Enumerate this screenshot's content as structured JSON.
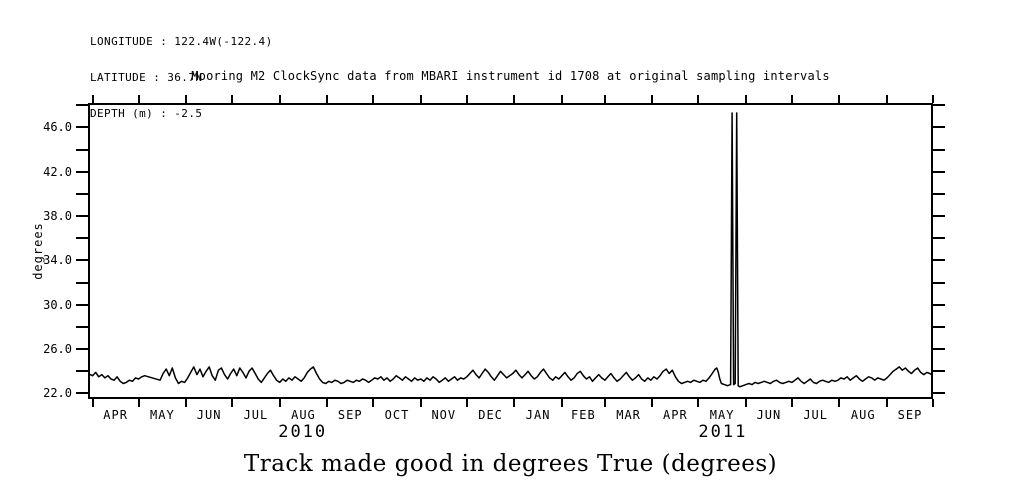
{
  "header": {
    "longitude": "LONGITUDE : 122.4W(-122.4)",
    "latitude": "LATITUDE : 36.7N",
    "depth": "DEPTH (m) : -2.5"
  },
  "title": "Mooring M2 ClockSync data from MBARI instrument id 1708 at original sampling intervals",
  "caption": "Track made good in degrees True (degrees)",
  "colors": {
    "line": "#000000",
    "background": "#ffffff",
    "text": "#000000"
  },
  "chart_data": {
    "type": "line",
    "title": "Mooring M2 ClockSync data from MBARI instrument id 1708 at original sampling intervals",
    "xlabel": "",
    "ylabel": "degrees",
    "ylim": [
      21.5,
      48.2
    ],
    "xlim_days": [
      -3,
      548
    ],
    "grid": false,
    "legend": "none",
    "y_ticks": [
      {
        "v": 22,
        "label": "22.0"
      },
      {
        "v": 24,
        "label": ""
      },
      {
        "v": 26,
        "label": "26.0"
      },
      {
        "v": 28,
        "label": ""
      },
      {
        "v": 30,
        "label": "30.0"
      },
      {
        "v": 32,
        "label": ""
      },
      {
        "v": 34,
        "label": "34.0"
      },
      {
        "v": 36,
        "label": ""
      },
      {
        "v": 38,
        "label": "38.0"
      },
      {
        "v": 40,
        "label": ""
      },
      {
        "v": 42,
        "label": "42.0"
      },
      {
        "v": 44,
        "label": ""
      },
      {
        "v": 46,
        "label": "46.0"
      },
      {
        "v": 48,
        "label": ""
      }
    ],
    "month_tick_days": [
      0,
      30,
      61,
      91,
      122,
      153,
      183,
      214,
      244,
      275,
      306,
      334,
      365,
      395,
      426,
      456,
      487,
      518,
      548
    ],
    "month_labels": [
      "APR",
      "MAY",
      "JUN",
      "JUL",
      "AUG",
      "SEP",
      "OCT",
      "NOV",
      "DEC",
      "JAN",
      "FEB",
      "MAR",
      "APR",
      "MAY",
      "JUN",
      "JUL",
      "AUG",
      "SEP"
    ],
    "year_labels": [
      {
        "label": "2010",
        "day": 137
      },
      {
        "label": "2011",
        "day": 411
      }
    ],
    "series": [
      {
        "name": "track_made_good_deg_true",
        "points": [
          [
            -3,
            23.8
          ],
          [
            0,
            23.6
          ],
          [
            2,
            23.9
          ],
          [
            4,
            23.5
          ],
          [
            6,
            23.7
          ],
          [
            8,
            23.4
          ],
          [
            10,
            23.6
          ],
          [
            12,
            23.3
          ],
          [
            14,
            23.2
          ],
          [
            16,
            23.5
          ],
          [
            18,
            23.1
          ],
          [
            20,
            22.9
          ],
          [
            22,
            23.0
          ],
          [
            24,
            23.2
          ],
          [
            26,
            23.1
          ],
          [
            28,
            23.4
          ],
          [
            30,
            23.3
          ],
          [
            32,
            23.5
          ],
          [
            34,
            23.6
          ],
          [
            44,
            23.2
          ],
          [
            46,
            23.8
          ],
          [
            48,
            24.2
          ],
          [
            50,
            23.6
          ],
          [
            52,
            24.3
          ],
          [
            54,
            23.4
          ],
          [
            56,
            22.9
          ],
          [
            58,
            23.1
          ],
          [
            60,
            23.0
          ],
          [
            62,
            23.4
          ],
          [
            64,
            23.9
          ],
          [
            66,
            24.4
          ],
          [
            68,
            23.7
          ],
          [
            70,
            24.2
          ],
          [
            72,
            23.5
          ],
          [
            74,
            24.0
          ],
          [
            76,
            24.4
          ],
          [
            78,
            23.6
          ],
          [
            80,
            23.2
          ],
          [
            82,
            24.1
          ],
          [
            84,
            24.3
          ],
          [
            86,
            23.7
          ],
          [
            88,
            23.3
          ],
          [
            90,
            23.8
          ],
          [
            92,
            24.2
          ],
          [
            94,
            23.6
          ],
          [
            96,
            24.3
          ],
          [
            98,
            23.9
          ],
          [
            100,
            23.4
          ],
          [
            102,
            24.0
          ],
          [
            104,
            24.3
          ],
          [
            106,
            23.8
          ],
          [
            108,
            23.3
          ],
          [
            110,
            23.0
          ],
          [
            112,
            23.4
          ],
          [
            114,
            23.8
          ],
          [
            116,
            24.1
          ],
          [
            118,
            23.6
          ],
          [
            120,
            23.2
          ],
          [
            122,
            23.0
          ],
          [
            124,
            23.3
          ],
          [
            126,
            23.1
          ],
          [
            128,
            23.4
          ],
          [
            130,
            23.2
          ],
          [
            132,
            23.5
          ],
          [
            134,
            23.3
          ],
          [
            136,
            23.1
          ],
          [
            138,
            23.4
          ],
          [
            140,
            23.9
          ],
          [
            142,
            24.2
          ],
          [
            144,
            24.4
          ],
          [
            146,
            23.8
          ],
          [
            148,
            23.3
          ],
          [
            150,
            23.0
          ],
          [
            152,
            22.9
          ],
          [
            154,
            23.1
          ],
          [
            156,
            23.0
          ],
          [
            158,
            23.2
          ],
          [
            160,
            23.1
          ],
          [
            162,
            22.9
          ],
          [
            164,
            23.0
          ],
          [
            166,
            23.2
          ],
          [
            168,
            23.1
          ],
          [
            170,
            23.0
          ],
          [
            172,
            23.2
          ],
          [
            174,
            23.1
          ],
          [
            176,
            23.3
          ],
          [
            178,
            23.2
          ],
          [
            180,
            23.0
          ],
          [
            182,
            23.2
          ],
          [
            184,
            23.4
          ],
          [
            186,
            23.3
          ],
          [
            188,
            23.5
          ],
          [
            190,
            23.2
          ],
          [
            192,
            23.4
          ],
          [
            194,
            23.1
          ],
          [
            196,
            23.3
          ],
          [
            198,
            23.6
          ],
          [
            200,
            23.4
          ],
          [
            202,
            23.2
          ],
          [
            204,
            23.5
          ],
          [
            206,
            23.3
          ],
          [
            208,
            23.1
          ],
          [
            210,
            23.4
          ],
          [
            212,
            23.2
          ],
          [
            214,
            23.3
          ],
          [
            216,
            23.1
          ],
          [
            218,
            23.4
          ],
          [
            220,
            23.2
          ],
          [
            222,
            23.5
          ],
          [
            224,
            23.3
          ],
          [
            226,
            23.0
          ],
          [
            228,
            23.2
          ],
          [
            230,
            23.4
          ],
          [
            232,
            23.1
          ],
          [
            234,
            23.3
          ],
          [
            236,
            23.5
          ],
          [
            238,
            23.2
          ],
          [
            240,
            23.4
          ],
          [
            242,
            23.3
          ],
          [
            244,
            23.5
          ],
          [
            246,
            23.8
          ],
          [
            248,
            24.1
          ],
          [
            250,
            23.7
          ],
          [
            252,
            23.4
          ],
          [
            254,
            23.8
          ],
          [
            256,
            24.2
          ],
          [
            258,
            23.9
          ],
          [
            260,
            23.5
          ],
          [
            262,
            23.2
          ],
          [
            264,
            23.6
          ],
          [
            266,
            24.0
          ],
          [
            268,
            23.7
          ],
          [
            270,
            23.4
          ],
          [
            272,
            23.6
          ],
          [
            274,
            23.8
          ],
          [
            276,
            24.1
          ],
          [
            278,
            23.7
          ],
          [
            280,
            23.4
          ],
          [
            282,
            23.7
          ],
          [
            284,
            24.0
          ],
          [
            286,
            23.6
          ],
          [
            288,
            23.3
          ],
          [
            290,
            23.5
          ],
          [
            292,
            23.9
          ],
          [
            294,
            24.2
          ],
          [
            296,
            23.8
          ],
          [
            298,
            23.4
          ],
          [
            300,
            23.2
          ],
          [
            302,
            23.5
          ],
          [
            304,
            23.3
          ],
          [
            306,
            23.6
          ],
          [
            308,
            23.9
          ],
          [
            310,
            23.5
          ],
          [
            312,
            23.2
          ],
          [
            314,
            23.4
          ],
          [
            316,
            23.8
          ],
          [
            318,
            24.0
          ],
          [
            320,
            23.6
          ],
          [
            322,
            23.3
          ],
          [
            324,
            23.5
          ],
          [
            326,
            23.1
          ],
          [
            328,
            23.4
          ],
          [
            330,
            23.7
          ],
          [
            332,
            23.4
          ],
          [
            334,
            23.2
          ],
          [
            336,
            23.5
          ],
          [
            338,
            23.8
          ],
          [
            340,
            23.4
          ],
          [
            342,
            23.1
          ],
          [
            344,
            23.3
          ],
          [
            346,
            23.6
          ],
          [
            348,
            23.9
          ],
          [
            350,
            23.5
          ],
          [
            352,
            23.2
          ],
          [
            354,
            23.4
          ],
          [
            356,
            23.7
          ],
          [
            358,
            23.3
          ],
          [
            360,
            23.1
          ],
          [
            362,
            23.4
          ],
          [
            364,
            23.2
          ],
          [
            366,
            23.5
          ],
          [
            368,
            23.3
          ],
          [
            370,
            23.6
          ],
          [
            372,
            24.0
          ],
          [
            374,
            24.2
          ],
          [
            376,
            23.8
          ],
          [
            378,
            24.1
          ],
          [
            380,
            23.5
          ],
          [
            382,
            23.1
          ],
          [
            384,
            22.9
          ],
          [
            386,
            23.0
          ],
          [
            388,
            23.1
          ],
          [
            390,
            23.0
          ],
          [
            392,
            23.2
          ],
          [
            394,
            23.1
          ],
          [
            396,
            23.0
          ],
          [
            398,
            23.2
          ],
          [
            400,
            23.1
          ],
          [
            402,
            23.4
          ],
          [
            404,
            23.8
          ],
          [
            406,
            24.2
          ],
          [
            407,
            24.3
          ],
          [
            408,
            23.9
          ],
          [
            409,
            23.3
          ],
          [
            410,
            22.9
          ],
          [
            412,
            22.8
          ],
          [
            414,
            22.7
          ],
          [
            416,
            22.8
          ],
          [
            417,
            47.3
          ],
          [
            418,
            22.8
          ],
          [
            419,
            22.9
          ],
          [
            420,
            47.3
          ],
          [
            421,
            22.7
          ],
          [
            422,
            22.6
          ],
          [
            424,
            22.7
          ],
          [
            426,
            22.8
          ],
          [
            428,
            22.9
          ],
          [
            430,
            22.8
          ],
          [
            432,
            23.0
          ],
          [
            434,
            22.9
          ],
          [
            436,
            23.0
          ],
          [
            438,
            23.1
          ],
          [
            440,
            23.0
          ],
          [
            442,
            22.9
          ],
          [
            444,
            23.1
          ],
          [
            446,
            23.2
          ],
          [
            448,
            23.0
          ],
          [
            450,
            22.9
          ],
          [
            452,
            23.0
          ],
          [
            454,
            23.1
          ],
          [
            456,
            23.0
          ],
          [
            458,
            23.2
          ],
          [
            460,
            23.4
          ],
          [
            462,
            23.1
          ],
          [
            464,
            22.9
          ],
          [
            466,
            23.1
          ],
          [
            468,
            23.3
          ],
          [
            470,
            23.0
          ],
          [
            472,
            22.9
          ],
          [
            474,
            23.1
          ],
          [
            476,
            23.2
          ],
          [
            478,
            23.1
          ],
          [
            480,
            23.0
          ],
          [
            482,
            23.2
          ],
          [
            484,
            23.1
          ],
          [
            486,
            23.2
          ],
          [
            488,
            23.4
          ],
          [
            490,
            23.3
          ],
          [
            492,
            23.5
          ],
          [
            494,
            23.2
          ],
          [
            496,
            23.4
          ],
          [
            498,
            23.6
          ],
          [
            500,
            23.3
          ],
          [
            502,
            23.1
          ],
          [
            504,
            23.3
          ],
          [
            506,
            23.5
          ],
          [
            508,
            23.4
          ],
          [
            510,
            23.2
          ],
          [
            512,
            23.4
          ],
          [
            514,
            23.3
          ],
          [
            516,
            23.2
          ],
          [
            518,
            23.4
          ],
          [
            520,
            23.7
          ],
          [
            522,
            24.0
          ],
          [
            524,
            24.2
          ],
          [
            526,
            24.4
          ],
          [
            528,
            24.1
          ],
          [
            530,
            24.3
          ],
          [
            532,
            24.0
          ],
          [
            534,
            23.8
          ],
          [
            536,
            24.1
          ],
          [
            538,
            24.3
          ],
          [
            540,
            23.9
          ],
          [
            542,
            23.7
          ],
          [
            544,
            23.9
          ],
          [
            546,
            23.8
          ],
          [
            547,
            23.7
          ]
        ]
      }
    ]
  }
}
